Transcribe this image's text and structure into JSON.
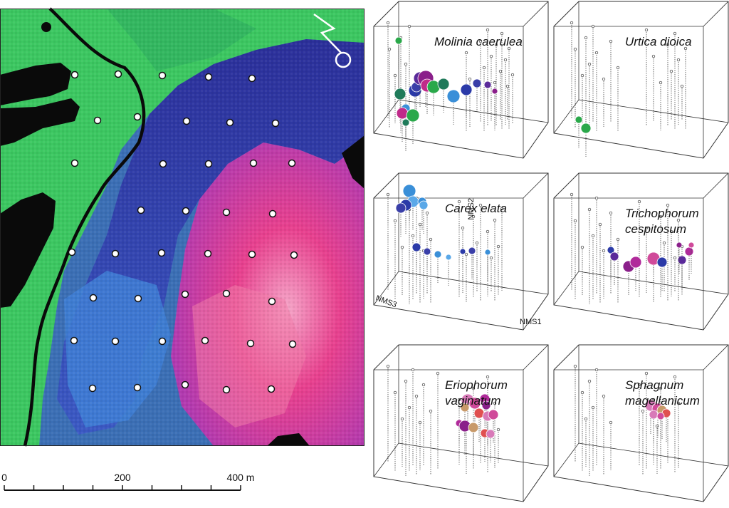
{
  "map": {
    "title": "false-colour site map with sampling plots",
    "north_arrow_icon": "north-arrow-icon",
    "scale_bar": {
      "labels": [
        "0",
        "200",
        "400 m"
      ],
      "unit": "m"
    }
  },
  "panels": [
    {
      "id": "molinia",
      "label_lines": [
        "Molinia caerulea"
      ],
      "accent": "#3a3fa8"
    },
    {
      "id": "urtica",
      "label_lines": [
        "Urtica dioica"
      ],
      "accent": "#2aa84a"
    },
    {
      "id": "carex",
      "label_lines": [
        "Carex elata"
      ],
      "accent": "#3a8fd8",
      "axes": {
        "x": "NMS1",
        "y": "NMS2",
        "z": "NMS3"
      }
    },
    {
      "id": "trichophorum",
      "label_lines": [
        "Trichophorum",
        "cespitosum"
      ],
      "accent": "#8a1f8a"
    },
    {
      "id": "eriophorum",
      "label_lines": [
        "Eriophorum",
        "vaginatum"
      ],
      "accent": "#d04a9a"
    },
    {
      "id": "sphagnum",
      "label_lines": [
        "Sphagnum",
        "magellanicum"
      ],
      "accent": "#d87ab8"
    }
  ],
  "colors": {
    "green": "#39c95a",
    "blue": "#3450b8",
    "magenta": "#e0398a",
    "plot_marker": "#ffffff"
  }
}
